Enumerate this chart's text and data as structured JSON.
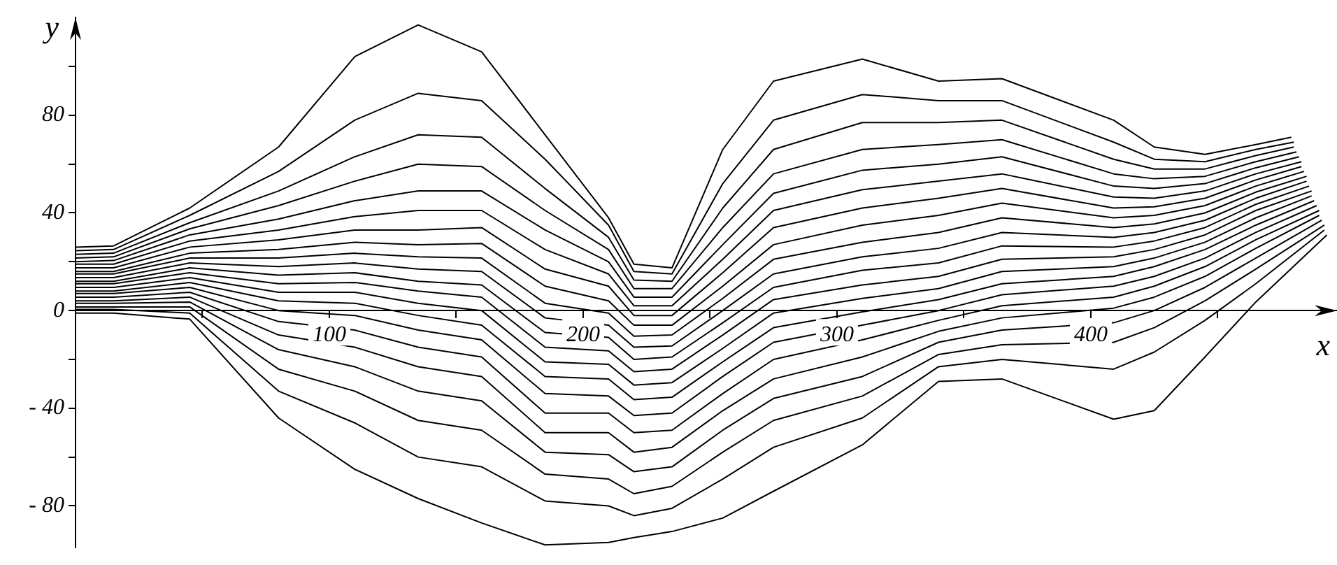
{
  "chart_data": {
    "type": "line",
    "xlabel": "x",
    "ylabel": "y",
    "xlim": [
      0,
      497
    ],
    "ylim": [
      -97,
      120
    ],
    "xticks": [
      {
        "value": 50,
        "label": null
      },
      100,
      {
        "value": 150,
        "label": null
      },
      200,
      {
        "value": 250,
        "label": null
      },
      300,
      {
        "value": 350,
        "label": null
      },
      400,
      {
        "value": 450,
        "label": null
      }
    ],
    "yticks": [
      {
        "value": -80,
        "label": "- 80"
      },
      {
        "value": -60,
        "label": null
      },
      {
        "value": -40,
        "label": "- 40"
      },
      {
        "value": -20,
        "label": null
      },
      0,
      {
        "value": 20,
        "label": null
      },
      40,
      {
        "value": 60,
        "label": null
      },
      80,
      {
        "value": 100,
        "label": null
      }
    ],
    "series": [
      {
        "color": "#000000",
        "x": [
          0,
          15,
          45,
          80,
          110,
          135,
          160,
          185,
          210,
          220,
          235,
          255,
          275,
          310,
          340,
          365,
          409,
          425,
          445,
          465,
          479
        ],
        "values": [
          26,
          26.5,
          42,
          67,
          104,
          117,
          106,
          72,
          38,
          19,
          17.5,
          66,
          94,
          103,
          94,
          95,
          78,
          67,
          64,
          68,
          71
        ]
      },
      {
        "color": "#000000",
        "x": [
          0,
          15,
          45,
          80,
          110,
          135,
          160,
          185,
          210,
          220,
          235,
          255,
          275,
          310,
          340,
          365,
          409,
          425,
          445,
          465,
          480
        ],
        "values": [
          24.5,
          25,
          39,
          57,
          78,
          89,
          86,
          62,
          35,
          16,
          15,
          52,
          78,
          88.5,
          86,
          86,
          69,
          62,
          61,
          66,
          69
        ]
      },
      {
        "color": "#000000",
        "x": [
          0,
          15,
          45,
          80,
          110,
          135,
          160,
          185,
          210,
          220,
          235,
          255,
          275,
          310,
          340,
          365,
          409,
          425,
          445,
          465,
          480
        ],
        "values": [
          23,
          23.5,
          36,
          49,
          63,
          72,
          71,
          50,
          30,
          12.5,
          12,
          42,
          66,
          77,
          77,
          78,
          62,
          58,
          58,
          63.5,
          67
        ]
      },
      {
        "color": "#000000",
        "x": [
          0,
          15,
          45,
          80,
          110,
          135,
          160,
          185,
          210,
          220,
          235,
          255,
          275,
          310,
          340,
          365,
          409,
          425,
          445,
          465,
          481
        ],
        "values": [
          21.5,
          22,
          33.5,
          43,
          53,
          60,
          59,
          41,
          25,
          9,
          9,
          34,
          56,
          66,
          68,
          70,
          56,
          54,
          55,
          61,
          65
        ]
      },
      {
        "color": "#000000",
        "x": [
          0,
          15,
          45,
          80,
          110,
          135,
          160,
          185,
          210,
          220,
          235,
          255,
          275,
          310,
          340,
          365,
          409,
          425,
          445,
          465,
          482
        ],
        "values": [
          20,
          20.5,
          31,
          37.5,
          45,
          49,
          49,
          33,
          20,
          5.5,
          5.5,
          27,
          48,
          57.5,
          60,
          63,
          51,
          50,
          52,
          58.5,
          63
        ]
      },
      {
        "color": "#000000",
        "x": [
          0,
          15,
          45,
          80,
          110,
          135,
          160,
          185,
          210,
          220,
          235,
          255,
          275,
          310,
          340,
          365,
          409,
          425,
          445,
          465,
          483
        ],
        "values": [
          19,
          19,
          28.5,
          33,
          38.5,
          41,
          41,
          25,
          15,
          2,
          2,
          21,
          41,
          49.5,
          53,
          56,
          46.5,
          46,
          49,
          56,
          61
        ]
      },
      {
        "color": "#000000",
        "x": [
          0,
          15,
          45,
          80,
          110,
          135,
          160,
          185,
          210,
          220,
          235,
          255,
          275,
          310,
          340,
          365,
          409,
          425,
          445,
          465,
          483
        ],
        "values": [
          17.5,
          17.5,
          26,
          29,
          33,
          33,
          34,
          17,
          10,
          -2,
          -2,
          15.5,
          34,
          42,
          46,
          50,
          42,
          42.5,
          46,
          53.5,
          59
        ]
      },
      {
        "color": "#000000",
        "x": [
          0,
          15,
          45,
          80,
          110,
          135,
          160,
          185,
          210,
          220,
          235,
          255,
          275,
          310,
          340,
          365,
          409,
          425,
          445,
          465,
          484
        ],
        "values": [
          16,
          16,
          23.5,
          25,
          28,
          27,
          27.5,
          10,
          4,
          -6,
          -6,
          10,
          27,
          35,
          39,
          44,
          38,
          39,
          43,
          51,
          57
        ]
      },
      {
        "color": "#000000",
        "x": [
          0,
          15,
          45,
          80,
          110,
          135,
          160,
          185,
          210,
          220,
          235,
          255,
          275,
          310,
          340,
          365,
          409,
          425,
          445,
          465,
          485
        ],
        "values": [
          15,
          15,
          21.5,
          21.5,
          23.5,
          22,
          21.5,
          3,
          -1,
          -10.5,
          -10,
          5,
          21,
          28,
          32,
          38,
          34,
          35.5,
          40,
          48.5,
          55
        ]
      },
      {
        "color": "#000000",
        "x": [
          0,
          15,
          45,
          80,
          110,
          135,
          160,
          185,
          210,
          220,
          235,
          255,
          275,
          310,
          340,
          365,
          409,
          425,
          445,
          465,
          485
        ],
        "values": [
          13.5,
          13.5,
          19.5,
          18,
          19.5,
          17,
          16,
          -3,
          -6,
          -15,
          -14.5,
          0,
          15,
          22,
          25.5,
          32,
          30,
          32,
          37,
          46,
          53
        ]
      },
      {
        "color": "#000000",
        "x": [
          0,
          15,
          45,
          80,
          110,
          135,
          160,
          185,
          210,
          220,
          235,
          255,
          275,
          310,
          340,
          365,
          409,
          425,
          445,
          465,
          486
        ],
        "values": [
          12,
          12,
          17.5,
          14.5,
          15.5,
          12,
          10.5,
          -9,
          -11,
          -20,
          -19,
          -5,
          9.5,
          16.5,
          19.5,
          26.5,
          26,
          28.5,
          34,
          43.5,
          51
        ]
      },
      {
        "color": "#000000",
        "x": [
          0,
          15,
          45,
          80,
          110,
          135,
          160,
          185,
          210,
          220,
          235,
          255,
          275,
          310,
          340,
          365,
          409,
          425,
          445,
          465,
          487
        ],
        "values": [
          11,
          11,
          15.5,
          11,
          11.5,
          8,
          5.5,
          -15,
          -16.5,
          -25,
          -24,
          -10,
          4.5,
          10.5,
          14,
          21,
          22,
          25,
          31,
          41,
          49
        ]
      },
      {
        "color": "#000000",
        "x": [
          0,
          15,
          45,
          80,
          110,
          135,
          160,
          185,
          210,
          220,
          235,
          255,
          275,
          310,
          340,
          365,
          409,
          425,
          445,
          465,
          487
        ],
        "values": [
          9.5,
          9.5,
          13.5,
          7.5,
          7.5,
          3,
          0,
          -21,
          -22,
          -30.5,
          -29.5,
          -15.5,
          -1,
          5,
          9,
          16,
          18,
          21.5,
          28,
          38,
          47
        ]
      },
      {
        "color": "#000000",
        "x": [
          0,
          15,
          45,
          80,
          110,
          135,
          160,
          185,
          210,
          220,
          235,
          255,
          275,
          310,
          340,
          365,
          409,
          425,
          445,
          465,
          488
        ],
        "values": [
          8,
          8,
          11.5,
          4,
          3,
          -2,
          -6,
          -27,
          -28,
          -36.5,
          -35.5,
          -21,
          -7,
          -0.5,
          4.5,
          11,
          14,
          18,
          25,
          35,
          45
        ]
      },
      {
        "color": "#000000",
        "x": [
          0,
          15,
          45,
          80,
          110,
          135,
          160,
          185,
          210,
          220,
          235,
          255,
          275,
          310,
          340,
          365,
          409,
          425,
          445,
          465,
          489
        ],
        "values": [
          7,
          7,
          9.5,
          0,
          -2,
          -8,
          -12,
          -34,
          -35,
          -43,
          -42,
          -27,
          -13,
          -6,
          0,
          6.5,
          10,
          14,
          21.5,
          32,
          43
        ]
      },
      {
        "color": "#000000",
        "x": [
          0,
          15,
          45,
          80,
          110,
          135,
          160,
          185,
          210,
          220,
          235,
          255,
          275,
          310,
          340,
          365,
          409,
          425,
          445,
          465,
          490
        ],
        "values": [
          5.5,
          5.5,
          7.5,
          -4.5,
          -8,
          -15,
          -19,
          -42,
          -42,
          -50,
          -49,
          -34,
          -20,
          -12,
          -4,
          2,
          5.5,
          10,
          18,
          29,
          41
        ]
      },
      {
        "color": "#000000",
        "x": [
          0,
          15,
          45,
          80,
          110,
          135,
          160,
          185,
          210,
          220,
          235,
          255,
          275,
          310,
          340,
          365,
          409,
          425,
          445,
          465,
          490
        ],
        "values": [
          4,
          4,
          5.5,
          -10,
          -15,
          -23,
          -27,
          -50,
          -50,
          -58,
          -56,
          -41,
          -28,
          -19,
          -8.5,
          -3,
          1,
          5.5,
          14,
          25.5,
          39
        ]
      },
      {
        "color": "#000000",
        "x": [
          0,
          15,
          45,
          80,
          110,
          135,
          160,
          185,
          210,
          220,
          235,
          255,
          275,
          310,
          340,
          365,
          409,
          425,
          445,
          465,
          491
        ],
        "values": [
          3,
          3,
          3.5,
          -16,
          -23,
          -33,
          -37,
          -58,
          -59,
          -66,
          -64,
          -49,
          -36,
          -27,
          -13,
          -8,
          -5,
          0,
          9.5,
          21.5,
          37
        ]
      },
      {
        "color": "#000000",
        "x": [
          0,
          15,
          45,
          80,
          110,
          135,
          160,
          185,
          210,
          220,
          235,
          255,
          275,
          310,
          340,
          365,
          409,
          425,
          445,
          465,
          492
        ],
        "values": [
          1.5,
          1.5,
          1.5,
          -24,
          -33,
          -45,
          -49,
          -67,
          -69,
          -75,
          -72,
          -58,
          -45,
          -35,
          -18,
          -14,
          -13,
          -7,
          4,
          17,
          35
        ]
      },
      {
        "color": "#000000",
        "x": [
          0,
          15,
          45,
          80,
          110,
          135,
          160,
          185,
          210,
          220,
          235,
          255,
          275,
          310,
          340,
          365,
          409,
          425,
          445,
          465,
          492
        ],
        "values": [
          0.5,
          0.5,
          -1,
          -33,
          -46,
          -60,
          -64,
          -78,
          -80,
          -84,
          -81,
          -69,
          -56,
          -44,
          -23,
          -20,
          -24,
          -17,
          -4,
          11,
          33
        ]
      },
      {
        "color": "#000000",
        "x": [
          0,
          15,
          45,
          80,
          110,
          135,
          160,
          185,
          210,
          220,
          235,
          255,
          275,
          310,
          340,
          365,
          409,
          425,
          445,
          465,
          493
        ],
        "values": [
          -1,
          -1,
          -3.5,
          -44,
          -65,
          -77,
          -87,
          -96,
          -95,
          -93,
          -90.5,
          -85,
          -74,
          -55,
          -29,
          -28,
          -44.5,
          -41,
          -19,
          3.5,
          31
        ]
      }
    ]
  }
}
